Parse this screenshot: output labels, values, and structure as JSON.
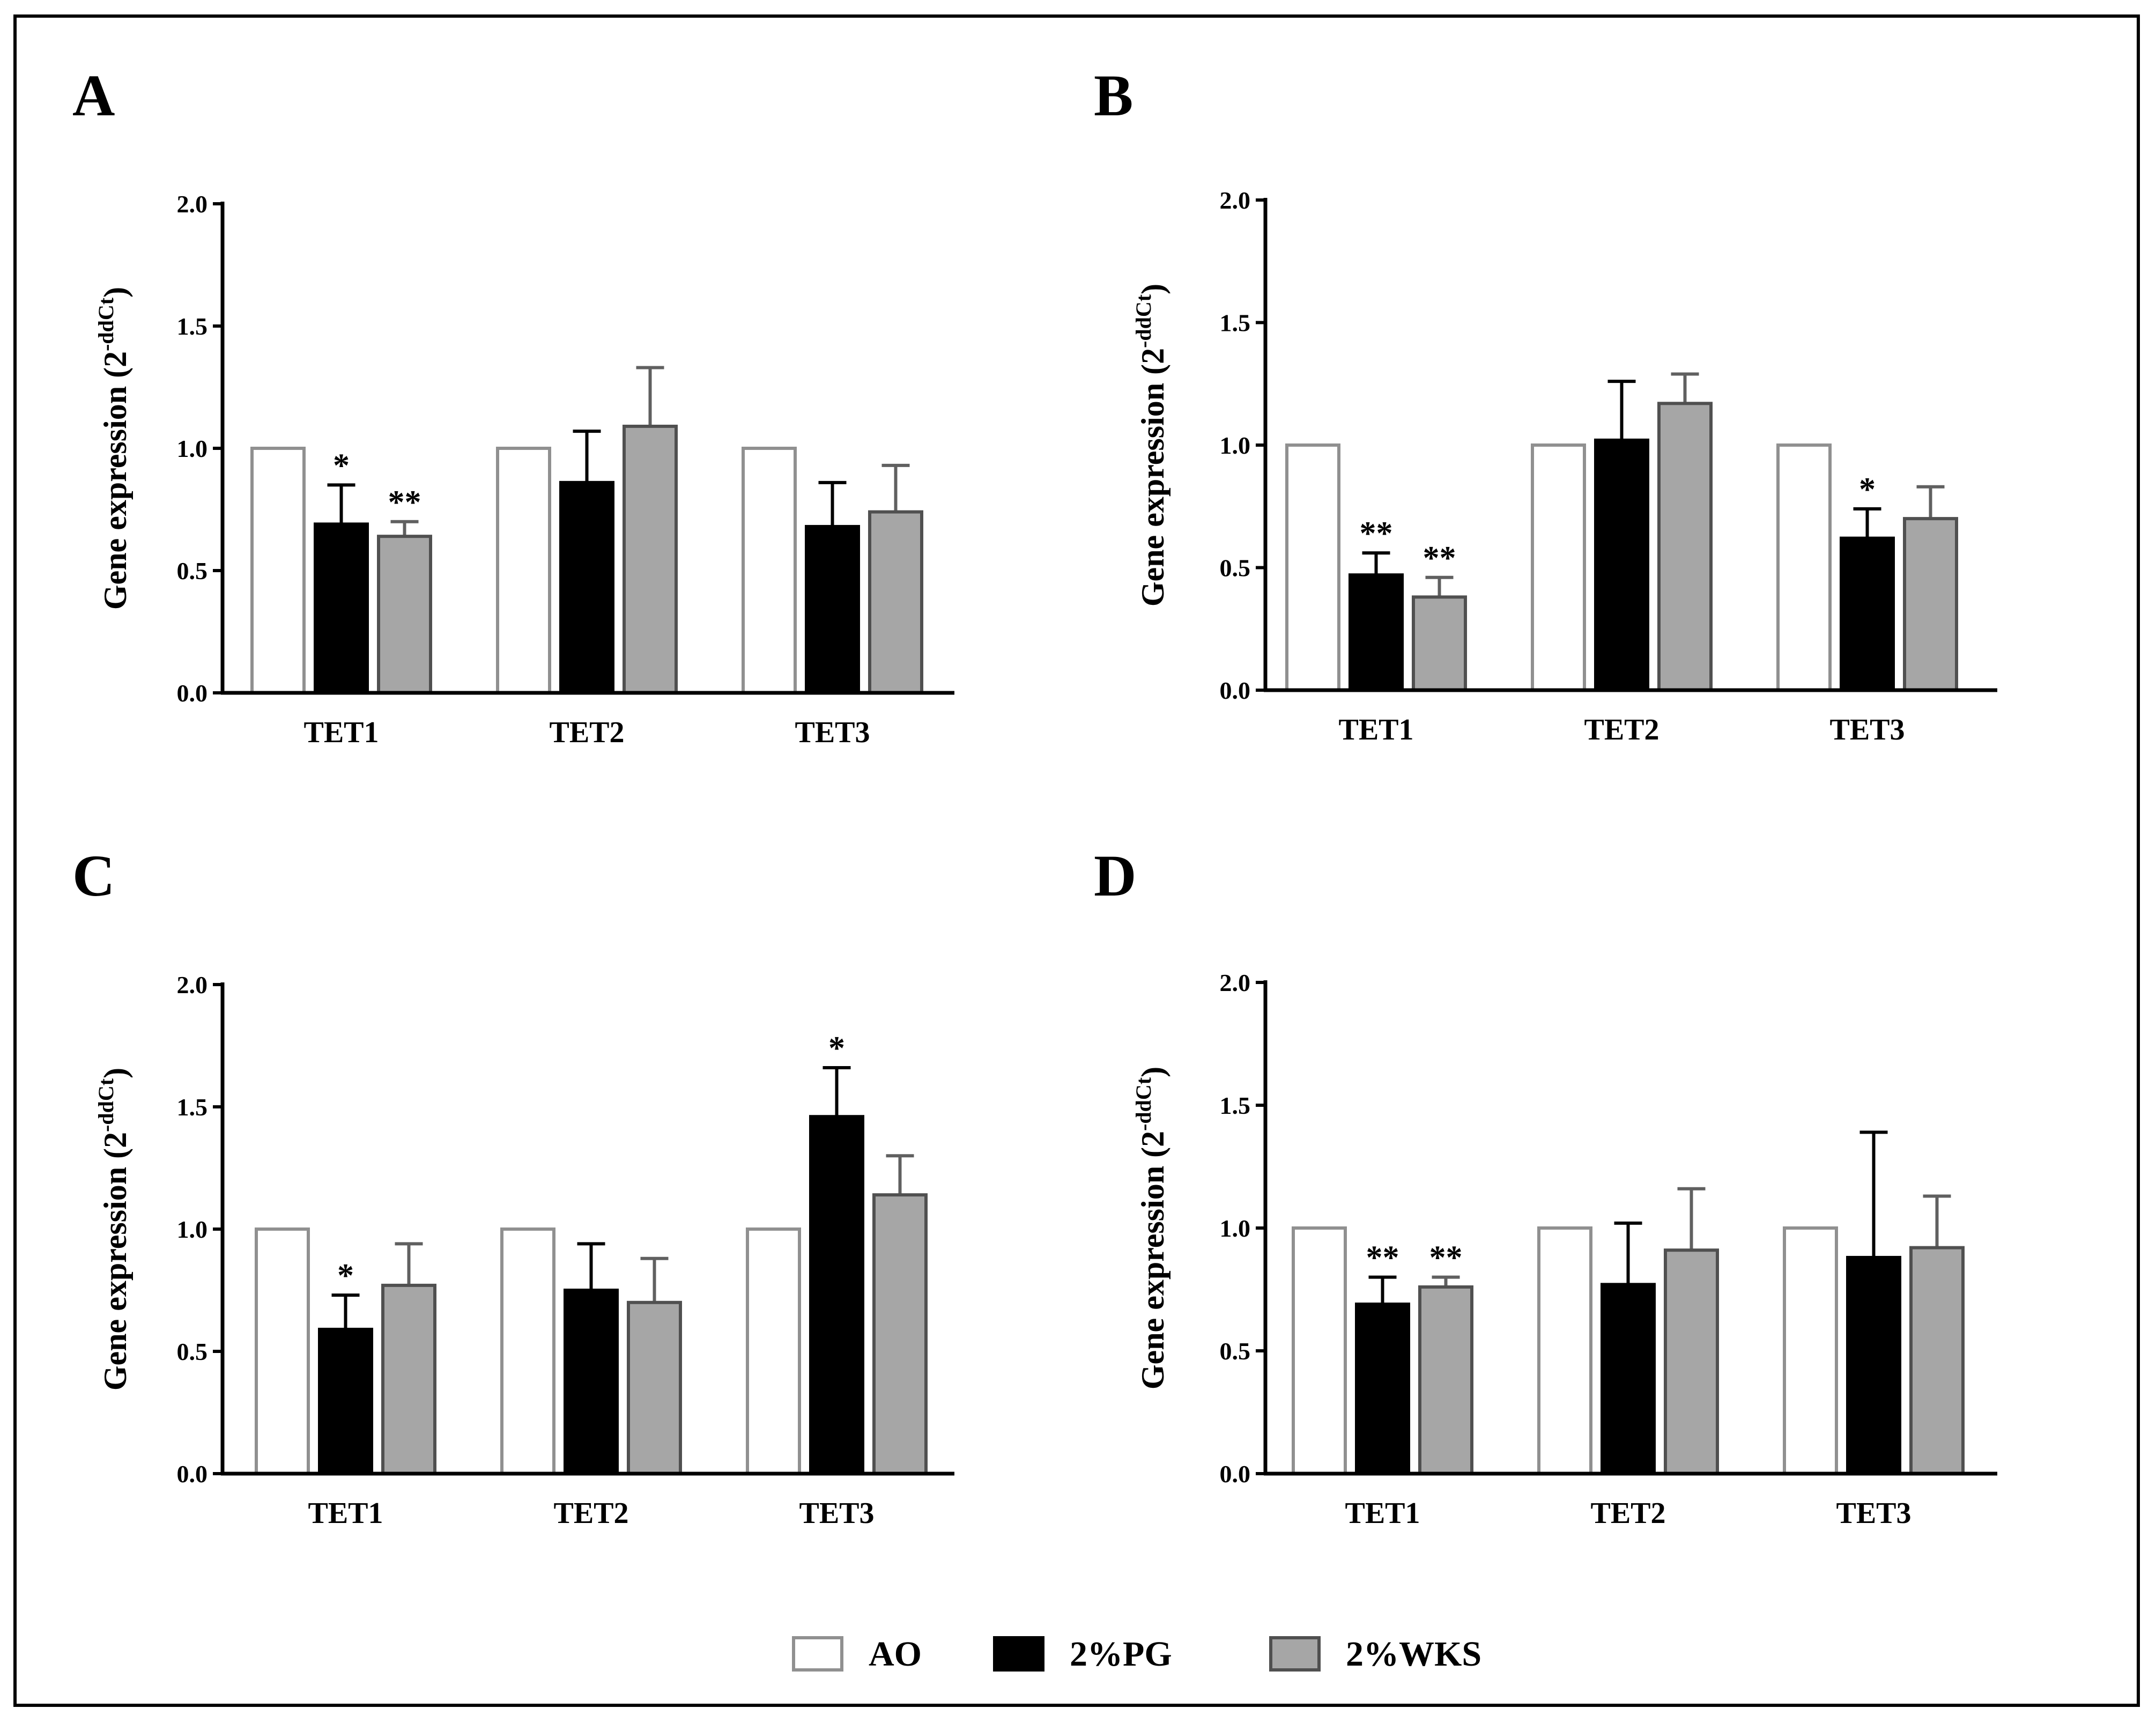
{
  "series_styles": [
    {
      "name": "AO",
      "fill": "#ffffff",
      "stroke": "#909090",
      "err": "#909090"
    },
    {
      "name": "2%PG",
      "fill": "#000000",
      "stroke": "#000000",
      "err": "#000000"
    },
    {
      "name": "2%WKS",
      "fill": "#a6a6a6",
      "stroke": "#505050",
      "err": "#606060"
    }
  ],
  "legend": [
    "AO",
    "2%PG",
    "2%WKS"
  ],
  "chart_data": [
    {
      "panel": "A",
      "type": "bar",
      "title": "",
      "xlabel": "",
      "ylabel": "Gene expression (2",
      "ylabel_sup": "-ddCt",
      "ylabel_end": ")",
      "ylim": [
        0,
        2.0
      ],
      "yticks": [
        "0.0",
        "0.5",
        "1.0",
        "1.5",
        "2.0"
      ],
      "categories": [
        "TET1",
        "TET2",
        "TET3"
      ],
      "series": [
        {
          "name": "AO",
          "values": [
            1.0,
            1.0,
            1.0
          ],
          "errors": [
            0,
            0,
            0
          ],
          "sig": [
            "",
            "",
            ""
          ]
        },
        {
          "name": "2%PG",
          "values": [
            0.69,
            0.86,
            0.68
          ],
          "errors": [
            0.16,
            0.21,
            0.18
          ],
          "sig": [
            "*",
            "",
            ""
          ]
        },
        {
          "name": "2%WKS",
          "values": [
            0.64,
            1.09,
            0.74
          ],
          "errors": [
            0.06,
            0.24,
            0.19
          ],
          "sig": [
            "**",
            "",
            ""
          ]
        }
      ]
    },
    {
      "panel": "B",
      "type": "bar",
      "title": "",
      "xlabel": "",
      "ylabel": "Gene expression (2",
      "ylabel_sup": "-ddCt",
      "ylabel_end": ")",
      "ylim": [
        0,
        2.0
      ],
      "yticks": [
        "0.0",
        "0.5",
        "1.0",
        "1.5",
        "2.0"
      ],
      "categories": [
        "TET1",
        "TET2",
        "TET3"
      ],
      "series": [
        {
          "name": "AO",
          "values": [
            1.0,
            1.0,
            1.0
          ],
          "errors": [
            0,
            0,
            0
          ],
          "sig": [
            "",
            "",
            ""
          ]
        },
        {
          "name": "2%PG",
          "values": [
            0.47,
            1.02,
            0.62
          ],
          "errors": [
            0.09,
            0.24,
            0.12
          ],
          "sig": [
            "**",
            "",
            "*"
          ]
        },
        {
          "name": "2%WKS",
          "values": [
            0.38,
            1.17,
            0.7
          ],
          "errors": [
            0.08,
            0.12,
            0.13
          ],
          "sig": [
            "**",
            "",
            ""
          ]
        }
      ]
    },
    {
      "panel": "C",
      "type": "bar",
      "title": "",
      "xlabel": "",
      "ylabel": "Gene expression (2",
      "ylabel_sup": "-ddCt",
      "ylabel_end": ")",
      "ylim": [
        0,
        2.0
      ],
      "yticks": [
        "0.0",
        "0.5",
        "1.0",
        "1.5",
        "2.0"
      ],
      "categories": [
        "TET1",
        "TET2",
        "TET3"
      ],
      "series": [
        {
          "name": "AO",
          "values": [
            1.0,
            1.0,
            1.0
          ],
          "errors": [
            0,
            0,
            0
          ],
          "sig": [
            "",
            "",
            ""
          ]
        },
        {
          "name": "2%PG",
          "values": [
            0.59,
            0.75,
            1.46
          ],
          "errors": [
            0.14,
            0.19,
            0.2
          ],
          "sig": [
            "*",
            "",
            "*"
          ]
        },
        {
          "name": "2%WKS",
          "values": [
            0.77,
            0.7,
            1.14
          ],
          "errors": [
            0.17,
            0.18,
            0.16
          ],
          "sig": [
            "",
            "",
            ""
          ]
        }
      ]
    },
    {
      "panel": "D",
      "type": "bar",
      "title": "",
      "xlabel": "",
      "ylabel": "Gene expression (2",
      "ylabel_sup": "-ddCt",
      "ylabel_end": ")",
      "ylim": [
        0,
        2.0
      ],
      "yticks": [
        "0.0",
        "0.5",
        "1.0",
        "1.5",
        "2.0"
      ],
      "categories": [
        "TET1",
        "TET2",
        "TET3"
      ],
      "series": [
        {
          "name": "AO",
          "values": [
            1.0,
            1.0,
            1.0
          ],
          "errors": [
            0,
            0,
            0
          ],
          "sig": [
            "",
            "",
            ""
          ]
        },
        {
          "name": "2%PG",
          "values": [
            0.69,
            0.77,
            0.88
          ],
          "errors": [
            0.11,
            0.25,
            0.51
          ],
          "sig": [
            "**",
            "",
            ""
          ]
        },
        {
          "name": "2%WKS",
          "values": [
            0.76,
            0.91,
            0.92
          ],
          "errors": [
            0.04,
            0.25,
            0.21
          ],
          "sig": [
            "**",
            "",
            ""
          ]
        }
      ]
    }
  ]
}
